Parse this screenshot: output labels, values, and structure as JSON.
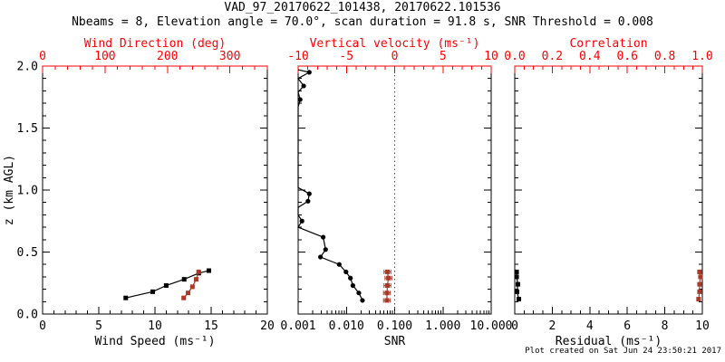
{
  "title": "VAD_97_20170622_101438, 20170622.101536",
  "subtitle": "Nbeams = 8, Elevation angle = 70.0°, scan duration = 91.8 s, SNR Threshold = 0.008",
  "footer": "Plot created on Sat Jun 24 23:50:21 2017",
  "colors": {
    "axis_accent": "#ff0000",
    "data_red": "#aa3a26",
    "data_black": "#000000",
    "frame": "#000000"
  },
  "chart_data": [
    {
      "id": "wind-speed-direction-panel",
      "type": "line",
      "y_axis": {
        "label": "z (km AGL)",
        "lim": [
          0,
          2
        ],
        "ticks": [
          0,
          0.5,
          1,
          1.5,
          2
        ],
        "tick_labels": [
          "0.0",
          "0.5",
          "1.0",
          "1.5",
          "2.0"
        ],
        "minor_step": 0.1,
        "show_labels": true
      },
      "bottom_axis": {
        "label": "Wind Speed (ms⁻¹)",
        "lim": [
          0,
          20
        ],
        "ticks": [
          0,
          5,
          10,
          15,
          20
        ],
        "tick_labels": [
          "0",
          "5",
          "10",
          "15",
          "20"
        ],
        "minor_step": 1
      },
      "top_axis": {
        "label": "Wind Direction (deg)",
        "lim": [
          0,
          360
        ],
        "ticks": [
          0,
          100,
          200,
          300
        ],
        "tick_labels": [
          "0",
          "100",
          "200",
          "300"
        ],
        "minor_step": 20
      },
      "series": [
        {
          "name": "wind-speed",
          "axis": "bottom",
          "color": "black",
          "marker": "square",
          "line": true,
          "points": [
            {
              "x": 7.4,
              "z": 0.13
            },
            {
              "x": 9.8,
              "z": 0.18
            },
            {
              "x": 11.0,
              "z": 0.23
            },
            {
              "x": 12.6,
              "z": 0.28
            },
            {
              "x": 13.9,
              "z": 0.33
            },
            {
              "x": 14.8,
              "z": 0.35
            }
          ]
        },
        {
          "name": "wind-direction",
          "axis": "top",
          "color": "red",
          "marker": "square",
          "line": true,
          "points": [
            {
              "x": 226,
              "z": 0.13
            },
            {
              "x": 233,
              "z": 0.17
            },
            {
              "x": 240,
              "z": 0.22
            },
            {
              "x": 246,
              "z": 0.28
            },
            {
              "x": 250,
              "z": 0.34
            }
          ]
        }
      ]
    },
    {
      "id": "snr-vertical-velocity-panel",
      "type": "line",
      "y_axis": {
        "label": "",
        "lim": [
          0,
          2
        ],
        "ticks": [
          0,
          0.5,
          1,
          1.5,
          2
        ],
        "tick_labels": [
          "",
          "",
          "",
          "",
          ""
        ],
        "minor_step": 0.1,
        "show_labels": false
      },
      "bottom_axis": {
        "label": "SNR",
        "scale": "log",
        "lim": [
          0.001,
          10
        ],
        "ticks": [
          0.001,
          0.01,
          0.1,
          1,
          10
        ],
        "tick_labels": [
          "0.001",
          "0.010",
          "0.100",
          "1.000",
          "10.000"
        ]
      },
      "top_axis": {
        "label": "Vertical velocity (ms⁻¹)",
        "lim": [
          -10,
          10
        ],
        "ticks": [
          -10,
          -5,
          0,
          5,
          10
        ],
        "tick_labels": [
          "-10",
          "-5",
          "0",
          "5",
          "10"
        ],
        "minor_step": 1
      },
      "refline": {
        "axis": "top",
        "value": 0,
        "style": "dotted",
        "color": "#ff0000"
      },
      "series": [
        {
          "name": "snr-profile",
          "axis": "bottom",
          "color": "black",
          "marker": "circle",
          "line": true,
          "points": [
            {
              "x": 0.001,
              "z": 1.97,
              "clip": true
            },
            {
              "x": 0.0017,
              "z": 1.95
            },
            {
              "x": 0.001,
              "z": 1.9,
              "clip": true
            },
            {
              "x": 0.0013,
              "z": 1.84
            },
            {
              "x": 0.001,
              "z": 1.79,
              "clip": true
            },
            {
              "x": 0.0011,
              "z": 1.73
            },
            {
              "x": 0.001,
              "z": 1.67,
              "clip": true
            },
            {
              "x": 0.001,
              "z": 1.02,
              "clip": true
            },
            {
              "x": 0.0017,
              "z": 0.97
            },
            {
              "x": 0.0016,
              "z": 0.91
            },
            {
              "x": 0.001,
              "z": 0.86,
              "clip": true
            },
            {
              "x": 0.001,
              "z": 0.8,
              "clip": true
            },
            {
              "x": 0.0012,
              "z": 0.75
            },
            {
              "x": 0.001,
              "z": 0.7,
              "clip": true
            },
            {
              "x": 0.0033,
              "z": 0.62
            },
            {
              "x": 0.0037,
              "z": 0.52
            },
            {
              "x": 0.0029,
              "z": 0.46
            },
            {
              "x": 0.0071,
              "z": 0.4
            },
            {
              "x": 0.0098,
              "z": 0.34
            },
            {
              "x": 0.0121,
              "z": 0.29
            },
            {
              "x": 0.0136,
              "z": 0.23
            },
            {
              "x": 0.0181,
              "z": 0.17
            },
            {
              "x": 0.0215,
              "z": 0.11
            }
          ]
        },
        {
          "name": "vertical-velocity",
          "axis": "top",
          "color": "red",
          "marker": "square",
          "line": true,
          "xerr": 0.35,
          "points": [
            {
              "x": -0.75,
              "z": 0.34
            },
            {
              "x": -0.65,
              "z": 0.29
            },
            {
              "x": -0.75,
              "z": 0.23
            },
            {
              "x": -0.8,
              "z": 0.17
            },
            {
              "x": -0.8,
              "z": 0.11
            }
          ]
        }
      ]
    },
    {
      "id": "residual-correlation-panel",
      "type": "line",
      "y_axis": {
        "label": "",
        "lim": [
          0,
          2
        ],
        "ticks": [
          0,
          0.5,
          1,
          1.5,
          2
        ],
        "tick_labels": [
          "",
          "",
          "",
          "",
          ""
        ],
        "minor_step": 0.1,
        "show_labels": false
      },
      "bottom_axis": {
        "label": "Residual (ms⁻¹)",
        "lim": [
          0,
          10
        ],
        "ticks": [
          0,
          2,
          4,
          6,
          8,
          10
        ],
        "tick_labels": [
          "0",
          "2",
          "4",
          "6",
          "8",
          "10"
        ],
        "minor_step": 0.5
      },
      "top_axis": {
        "label": "Correlation",
        "lim": [
          0,
          1
        ],
        "ticks": [
          0,
          0.2,
          0.4,
          0.6,
          0.8,
          1
        ],
        "tick_labels": [
          "0.0",
          "0.2",
          "0.4",
          "0.6",
          "0.8",
          "1.0"
        ],
        "minor_step": 0.05
      },
      "series": [
        {
          "name": "residual",
          "axis": "bottom",
          "color": "black",
          "marker": "square",
          "line": true,
          "points": [
            {
              "x": 0.1,
              "z": 0.34
            },
            {
              "x": 0.1,
              "z": 0.3
            },
            {
              "x": 0.17,
              "z": 0.24
            },
            {
              "x": 0.12,
              "z": 0.18
            },
            {
              "x": 0.22,
              "z": 0.12
            }
          ]
        },
        {
          "name": "correlation",
          "axis": "top",
          "color": "red",
          "marker": "square",
          "line": true,
          "points": [
            {
              "x": 0.985,
              "z": 0.34
            },
            {
              "x": 0.99,
              "z": 0.3
            },
            {
              "x": 0.985,
              "z": 0.24
            },
            {
              "x": 0.985,
              "z": 0.18
            },
            {
              "x": 0.98,
              "z": 0.12
            }
          ]
        }
      ]
    }
  ]
}
